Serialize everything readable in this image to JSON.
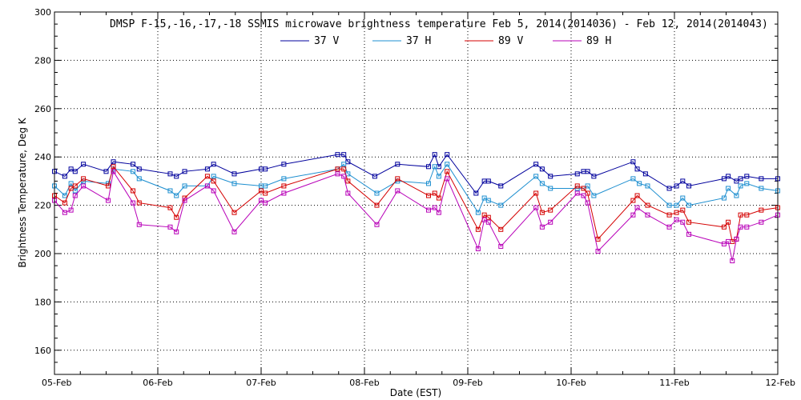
{
  "chart_data": {
    "type": "line",
    "title": "DMSP F-15,-16,-17,-18 SSMIS microwave brightness temperature Feb  5, 2014(2014036) - Feb 12, 2014(2014043)",
    "xlabel": "Date (EST)",
    "ylabel": "Brightness Temperature, Deg K",
    "xlim": [
      0,
      7
    ],
    "ylim": [
      150,
      300
    ],
    "x_ticks": [
      0,
      1,
      2,
      3,
      4,
      5,
      6,
      7
    ],
    "x_tick_labels": [
      "05-Feb",
      "06-Feb",
      "07-Feb",
      "08-Feb",
      "09-Feb",
      "10-Feb",
      "11-Feb",
      "12-Feb"
    ],
    "y_ticks": [
      160,
      180,
      200,
      220,
      240,
      260,
      280,
      300
    ],
    "y_tick_labels": [
      "160",
      "180",
      "200",
      "220",
      "240",
      "260",
      "280",
      "300"
    ],
    "grid": true,
    "series": [
      {
        "name": "37 V",
        "color": "#00009c",
        "x": [
          0.0,
          0.1,
          0.16,
          0.2,
          0.28,
          0.5,
          0.57,
          0.76,
          0.82,
          1.12,
          1.18,
          1.26,
          1.48,
          1.54,
          1.74,
          2.0,
          2.04,
          2.22,
          2.74,
          2.8,
          2.84,
          3.1,
          3.32,
          3.62,
          3.68,
          3.72,
          3.8,
          4.08,
          4.16,
          4.2,
          4.32,
          4.66,
          4.72,
          4.8,
          5.06,
          5.12,
          5.16,
          5.22,
          5.6,
          5.64,
          5.72,
          5.95,
          6.02,
          6.08,
          6.14,
          6.48,
          6.52,
          6.6,
          6.64,
          6.7,
          6.84,
          7.0
        ],
        "y": [
          234,
          232,
          235,
          234,
          237,
          234,
          238,
          237,
          235,
          233,
          232,
          234,
          235,
          237,
          233,
          235,
          235,
          237,
          241,
          241,
          238,
          232,
          237,
          236,
          241,
          236,
          241,
          225,
          230,
          230,
          228,
          237,
          235,
          232,
          233,
          234,
          234,
          232,
          238,
          235,
          233,
          227,
          228,
          230,
          228,
          231,
          232,
          230,
          231,
          232,
          231,
          231
        ]
      },
      {
        "name": "37 H",
        "color": "#1e8fd0",
        "x": [
          0.0,
          0.1,
          0.16,
          0.2,
          0.28,
          0.52,
          0.57,
          0.76,
          0.82,
          1.12,
          1.18,
          1.26,
          1.48,
          1.54,
          1.74,
          2.0,
          2.04,
          2.22,
          2.74,
          2.8,
          2.84,
          3.12,
          3.32,
          3.62,
          3.68,
          3.72,
          3.8,
          4.1,
          4.16,
          4.2,
          4.32,
          4.66,
          4.72,
          4.8,
          5.06,
          5.12,
          5.16,
          5.22,
          5.6,
          5.66,
          5.74,
          5.95,
          6.02,
          6.08,
          6.14,
          6.48,
          6.52,
          6.6,
          6.64,
          6.7,
          6.84,
          7.0
        ],
        "y": [
          228,
          224,
          229,
          226,
          230,
          229,
          235,
          234,
          231,
          226,
          224,
          228,
          228,
          232,
          229,
          228,
          228,
          231,
          235,
          237,
          233,
          225,
          230,
          229,
          236,
          232,
          237,
          217,
          223,
          222,
          220,
          232,
          229,
          227,
          227,
          227,
          228,
          224,
          231,
          229,
          228,
          220,
          220,
          223,
          220,
          223,
          227,
          224,
          228,
          229,
          227,
          226
        ]
      },
      {
        "name": "89 V",
        "color": "#d40000",
        "x": [
          0.0,
          0.1,
          0.16,
          0.2,
          0.28,
          0.52,
          0.57,
          0.76,
          0.82,
          1.12,
          1.18,
          1.26,
          1.48,
          1.54,
          1.74,
          2.0,
          2.04,
          2.22,
          2.74,
          2.8,
          2.84,
          3.12,
          3.32,
          3.62,
          3.68,
          3.72,
          3.8,
          4.1,
          4.16,
          4.2,
          4.32,
          4.66,
          4.72,
          4.8,
          5.06,
          5.12,
          5.16,
          5.26,
          5.6,
          5.64,
          5.74,
          5.95,
          6.02,
          6.08,
          6.14,
          6.48,
          6.52,
          6.56,
          6.6,
          6.64,
          6.7,
          6.84,
          7.0
        ],
        "y": [
          224,
          221,
          227,
          228,
          231,
          228,
          236,
          226,
          221,
          219,
          215,
          223,
          232,
          230,
          217,
          226,
          225,
          228,
          235,
          235,
          230,
          220,
          231,
          224,
          225,
          223,
          234,
          210,
          216,
          215,
          210,
          225,
          217,
          218,
          228,
          227,
          225,
          206,
          222,
          224,
          220,
          216,
          217,
          218,
          213,
          211,
          213,
          205,
          206,
          216,
          216,
          218,
          219
        ]
      },
      {
        "name": "89 H",
        "color": "#b800b8",
        "x": [
          0.0,
          0.1,
          0.16,
          0.2,
          0.28,
          0.52,
          0.57,
          0.76,
          0.82,
          1.12,
          1.18,
          1.26,
          1.48,
          1.54,
          1.74,
          2.0,
          2.04,
          2.22,
          2.74,
          2.8,
          2.84,
          3.12,
          3.32,
          3.62,
          3.68,
          3.72,
          3.8,
          4.1,
          4.16,
          4.2,
          4.32,
          4.66,
          4.72,
          4.8,
          5.06,
          5.12,
          5.16,
          5.26,
          5.6,
          5.64,
          5.74,
          5.95,
          6.02,
          6.08,
          6.14,
          6.48,
          6.52,
          6.56,
          6.6,
          6.64,
          6.7,
          6.84,
          7.0
        ],
        "y": [
          222,
          217,
          218,
          224,
          228,
          222,
          234,
          221,
          212,
          211,
          209,
          222,
          228,
          226,
          209,
          222,
          221,
          225,
          233,
          232,
          225,
          212,
          226,
          218,
          219,
          217,
          231,
          202,
          214,
          213,
          203,
          219,
          211,
          213,
          225,
          224,
          221,
          201,
          216,
          219,
          216,
          211,
          214,
          213,
          208,
          204,
          205,
          197,
          206,
          211,
          211,
          213,
          216
        ]
      }
    ]
  }
}
